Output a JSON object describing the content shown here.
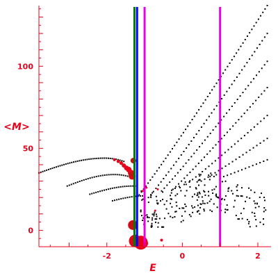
{
  "chart_data": {
    "type": "scatter",
    "xlabel": "E",
    "ylabel": "<M>",
    "xlim": [
      -3.8,
      2.35
    ],
    "ylim": [
      -10,
      137
    ],
    "x_ticks": [
      {
        "value": -2,
        "label": "-2"
      },
      {
        "value": 0,
        "label": "0"
      },
      {
        "value": 2,
        "label": "2"
      }
    ],
    "y_ticks": [
      {
        "value": 0,
        "label": "0"
      },
      {
        "value": 50,
        "label": "50"
      },
      {
        "value": 100,
        "label": "100"
      }
    ],
    "grid": false,
    "colors": {
      "axis": "#e8001a",
      "points_black": "#000000",
      "points_red": "#e8001a",
      "points_dark_red": "#c0150f",
      "green_line": "#007a00",
      "blue_line": "#0000ff",
      "magenta_line": "#e800e8"
    },
    "vertical_lines": [
      {
        "x": -1.27,
        "color": "#007a00"
      },
      {
        "x": -1.2,
        "color": "#0000ff"
      },
      {
        "x": -1.0,
        "color": "#e800e8"
      },
      {
        "x": 1.0,
        "color": "#e800e8"
      }
    ],
    "black_ridges": [
      {
        "x_start": -3.8,
        "x_end": -1.55,
        "peak_x": -2.05,
        "peak_y": 44,
        "start_y": 35,
        "end_y": 42,
        "n": 45
      },
      {
        "x_start": -3.05,
        "x_end": -1.45,
        "peak_x": -1.8,
        "peak_y": 34,
        "start_y": 27,
        "end_y": 33,
        "n": 30
      },
      {
        "x_start": -2.45,
        "x_end": -1.2,
        "peak_x": -1.3,
        "peak_y": 27,
        "start_y": 22,
        "end_y": 27,
        "n": 24
      },
      {
        "x_start": -1.85,
        "x_end": -1.0,
        "peak_x": -1.0,
        "peak_y": 21,
        "start_y": 18,
        "end_y": 21,
        "n": 16
      }
    ],
    "black_diagonals": [
      {
        "x0": -1.2,
        "y0": 20,
        "x1": 2.25,
        "y1": 137,
        "n": 60
      },
      {
        "x0": -0.9,
        "y0": 20,
        "x1": 2.25,
        "y1": 120,
        "n": 48
      },
      {
        "x0": -0.55,
        "y0": 24,
        "x1": 2.25,
        "y1": 103,
        "n": 40
      },
      {
        "x0": -0.25,
        "y0": 25,
        "x1": 2.25,
        "y1": 87,
        "n": 34
      },
      {
        "x0": 0.1,
        "y0": 28,
        "x1": 2.25,
        "y1": 70,
        "n": 26
      },
      {
        "x0": 0.5,
        "y0": 30,
        "x1": 2.25,
        "y1": 56,
        "n": 20
      },
      {
        "x0": 1.0,
        "y0": 32,
        "x1": 2.25,
        "y1": 43,
        "n": 14
      }
    ],
    "black_cloud": {
      "x_min": -1.1,
      "x_max": 2.3,
      "y_min": 2,
      "y_max": 40,
      "n": 230,
      "seed": 7
    },
    "red_points": [
      {
        "x": -1.8,
        "y": 43,
        "size": 2
      },
      {
        "x": -1.7,
        "y": 42,
        "size": 2.3
      },
      {
        "x": -1.62,
        "y": 41,
        "size": 2.6
      },
      {
        "x": -1.55,
        "y": 39.5,
        "size": 3
      },
      {
        "x": -1.48,
        "y": 38,
        "size": 3.5
      },
      {
        "x": -1.42,
        "y": 37,
        "size": 4
      },
      {
        "x": -1.36,
        "y": 35,
        "size": 4.5
      },
      {
        "x": -1.33,
        "y": 33,
        "size": 5
      },
      {
        "x": -1.31,
        "y": 3.2,
        "size": 7
      },
      {
        "x": -1.25,
        "y": -6.5,
        "size": 9
      },
      {
        "x": -1.1,
        "y": -7.5,
        "size": 10
      },
      {
        "x": -1.02,
        "y": -8,
        "size": 6
      },
      {
        "x": -0.55,
        "y": -6,
        "size": 2
      },
      {
        "x": -0.72,
        "y": 12,
        "size": 1.5
      },
      {
        "x": -0.65,
        "y": 25,
        "size": 1.5
      },
      {
        "x": -0.95,
        "y": 26,
        "size": 1.5
      },
      {
        "x": -1.05,
        "y": 24,
        "size": 1.5
      }
    ],
    "dark_red_points": [
      {
        "x": -1.3,
        "y": 42.5,
        "size": 4
      },
      {
        "x": -1.35,
        "y": 34,
        "size": 4
      },
      {
        "x": -1.31,
        "y": 3.2,
        "size": 5.5
      },
      {
        "x": -1.25,
        "y": -6.5,
        "size": 6
      }
    ]
  }
}
